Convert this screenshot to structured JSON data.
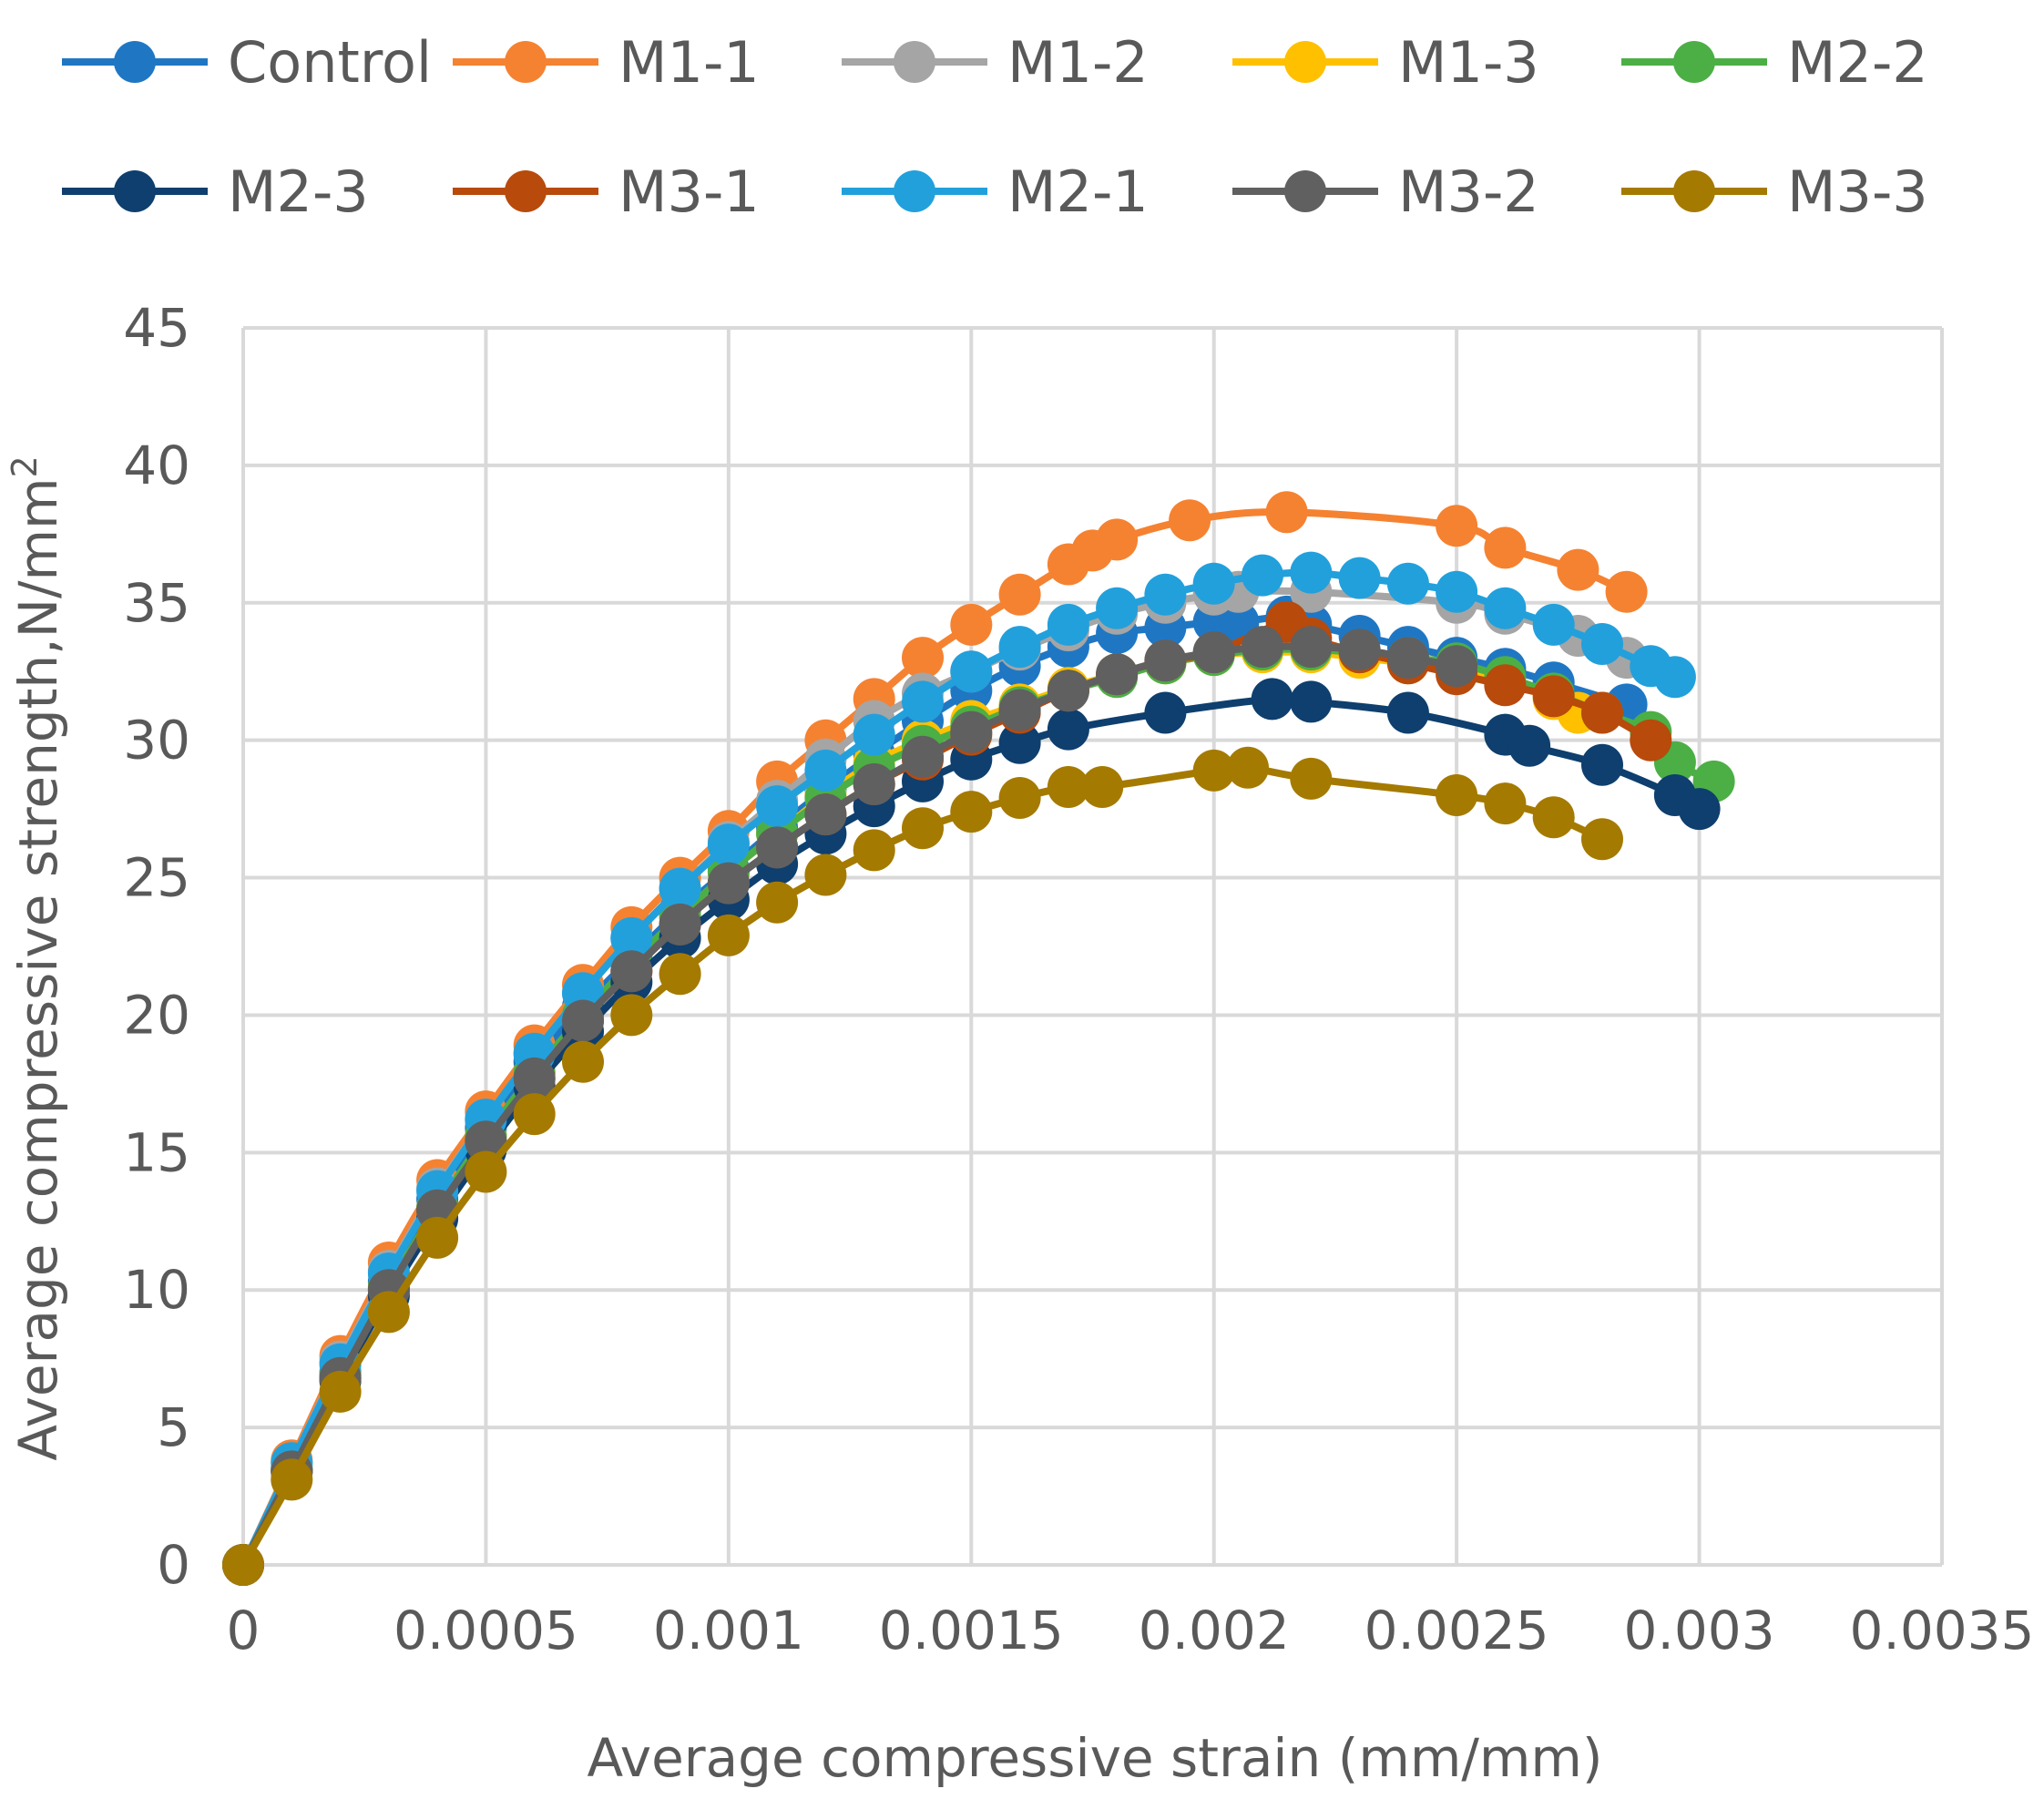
{
  "chart_data": {
    "type": "line",
    "xlabel": "Average compressive strain (mm/mm)",
    "ylabel": "Average compressive strength,N/mm",
    "ylabel_sup": "2",
    "xlim": [
      0,
      0.0035
    ],
    "ylim": [
      0,
      45
    ],
    "grid": true,
    "legend_position": "top",
    "x_ticks": [
      0,
      0.0005,
      0.001,
      0.0015,
      0.002,
      0.0025,
      0.003,
      0.0035
    ],
    "x_tick_labels": [
      "0",
      "0.0005",
      "0.001",
      "0.0015",
      "0.002",
      "0.0025",
      "0.003",
      "0.0035"
    ],
    "y_ticks": [
      0,
      5,
      10,
      15,
      20,
      25,
      30,
      35,
      40,
      45
    ],
    "y_tick_labels": [
      "0",
      "5",
      "10",
      "15",
      "20",
      "25",
      "30",
      "35",
      "40",
      "45"
    ],
    "series": [
      {
        "name": "Control",
        "color": "#1F77C4",
        "x": [
          0,
          0.0001,
          0.0002,
          0.0003,
          0.0004,
          0.0005,
          0.0006,
          0.0007,
          0.0008,
          0.0009,
          0.001,
          0.0011,
          0.0012,
          0.0013,
          0.0014,
          0.0015,
          0.0016,
          0.0017,
          0.0018,
          0.0019,
          0.002,
          0.00205,
          0.00215,
          0.0022,
          0.0023,
          0.0024,
          0.0025,
          0.0026,
          0.0027,
          0.00285
        ],
        "y": [
          0,
          3.5,
          7,
          10.3,
          13.3,
          15.9,
          18.3,
          20.3,
          22.1,
          23.8,
          25.3,
          26.8,
          28.2,
          29.5,
          30.7,
          31.8,
          32.7,
          33.4,
          33.9,
          34.1,
          34.3,
          34.3,
          34.5,
          34.2,
          33.8,
          33.4,
          33.0,
          32.6,
          32.1,
          31.3
        ]
      },
      {
        "name": "M1-1",
        "color": "#F58231",
        "x": [
          0,
          0.0001,
          0.0002,
          0.0003,
          0.0004,
          0.0005,
          0.0006,
          0.0007,
          0.0008,
          0.0009,
          0.001,
          0.0011,
          0.0012,
          0.0013,
          0.0014,
          0.0015,
          0.0016,
          0.0017,
          0.00175,
          0.0018,
          0.00195,
          0.00215,
          0.0025,
          0.0026,
          0.00275,
          0.00285
        ],
        "y": [
          0,
          3.8,
          7.6,
          11.0,
          14.0,
          16.5,
          18.9,
          21.1,
          23.2,
          25.0,
          26.7,
          28.5,
          30.0,
          31.5,
          33.0,
          34.2,
          35.3,
          36.4,
          36.9,
          37.3,
          38.0,
          38.3,
          37.8,
          37.0,
          36.2,
          35.4
        ]
      },
      {
        "name": "M1-2",
        "color": "#A5A5A5",
        "x": [
          0,
          0.0001,
          0.0002,
          0.0003,
          0.0004,
          0.0005,
          0.0006,
          0.0007,
          0.0008,
          0.0009,
          0.001,
          0.0011,
          0.0012,
          0.0013,
          0.0014,
          0.0015,
          0.0016,
          0.0017,
          0.0018,
          0.0019,
          0.002,
          0.00205,
          0.0022,
          0.0025,
          0.0026,
          0.00275,
          0.00285
        ],
        "y": [
          0,
          3.7,
          7.4,
          10.7,
          13.7,
          16.2,
          18.6,
          20.8,
          22.8,
          24.6,
          26.3,
          27.8,
          29.3,
          30.7,
          31.7,
          32.5,
          33.3,
          34.0,
          34.6,
          35.0,
          35.3,
          35.4,
          35.4,
          35.0,
          34.6,
          33.8,
          33.0
        ]
      },
      {
        "name": "M1-3",
        "color": "#FFC000",
        "x": [
          0,
          0.0001,
          0.0002,
          0.0003,
          0.0004,
          0.0005,
          0.0006,
          0.0007,
          0.0008,
          0.0009,
          0.001,
          0.0011,
          0.0012,
          0.0013,
          0.0014,
          0.0015,
          0.0016,
          0.0017,
          0.0018,
          0.0019,
          0.002,
          0.0021,
          0.0022,
          0.0023,
          0.0024,
          0.0025,
          0.0026,
          0.0027,
          0.00275
        ],
        "y": [
          0,
          3.5,
          6.9,
          10.1,
          13.0,
          15.6,
          17.9,
          20.0,
          21.9,
          23.6,
          25.2,
          26.6,
          28.0,
          29.2,
          30.0,
          30.7,
          31.3,
          31.9,
          32.4,
          32.8,
          33.1,
          33.2,
          33.2,
          33.0,
          32.8,
          32.5,
          32.1,
          31.5,
          31.0
        ]
      },
      {
        "name": "M2-2",
        "color": "#4CAF45",
        "x": [
          0,
          0.0001,
          0.0002,
          0.0003,
          0.0004,
          0.0005,
          0.0006,
          0.0007,
          0.0008,
          0.0009,
          0.001,
          0.0011,
          0.0012,
          0.0013,
          0.0014,
          0.0015,
          0.0016,
          0.0017,
          0.0018,
          0.0019,
          0.002,
          0.0021,
          0.0022,
          0.0023,
          0.0024,
          0.0025,
          0.0026,
          0.0027,
          0.0028,
          0.0029,
          0.00295,
          0.00303
        ],
        "y": [
          0,
          3.5,
          6.9,
          10.1,
          13.0,
          15.6,
          17.9,
          20.0,
          21.9,
          23.6,
          25.2,
          26.6,
          27.9,
          29.0,
          29.8,
          30.5,
          31.2,
          31.8,
          32.3,
          32.8,
          33.1,
          33.3,
          33.3,
          33.2,
          33.0,
          32.8,
          32.3,
          31.7,
          31.0,
          30.3,
          29.2,
          28.5
        ]
      },
      {
        "name": "M2-3",
        "color": "#0E3F6E",
        "x": [
          0,
          0.0001,
          0.0002,
          0.0003,
          0.0004,
          0.0005,
          0.0006,
          0.0007,
          0.0008,
          0.0009,
          0.001,
          0.0011,
          0.0012,
          0.0013,
          0.0014,
          0.0015,
          0.0016,
          0.0017,
          0.0019,
          0.00212,
          0.0022,
          0.0024,
          0.0026,
          0.00265,
          0.0028,
          0.00295,
          0.003
        ],
        "y": [
          0,
          3.4,
          6.7,
          9.8,
          12.6,
          15.1,
          17.4,
          19.4,
          21.2,
          22.8,
          24.2,
          25.5,
          26.6,
          27.6,
          28.5,
          29.3,
          29.9,
          30.4,
          31.0,
          31.5,
          31.4,
          31.0,
          30.2,
          29.8,
          29.1,
          28.0,
          27.5
        ]
      },
      {
        "name": "M3-1",
        "color": "#B84A0C",
        "x": [
          0,
          0.0001,
          0.0002,
          0.0003,
          0.0004,
          0.0005,
          0.0006,
          0.0007,
          0.0008,
          0.0009,
          0.001,
          0.0011,
          0.0012,
          0.0013,
          0.0014,
          0.0015,
          0.0016,
          0.0017,
          0.0018,
          0.0019,
          0.002,
          0.00215,
          0.0022,
          0.0023,
          0.0024,
          0.0025,
          0.0026,
          0.0027,
          0.0028,
          0.0029
        ],
        "y": [
          0,
          3.4,
          6.8,
          10.0,
          12.9,
          15.4,
          17.7,
          19.8,
          21.6,
          23.3,
          24.8,
          26.1,
          27.3,
          28.4,
          29.3,
          30.2,
          31.0,
          31.8,
          32.4,
          32.9,
          33.2,
          34.3,
          33.7,
          33.2,
          32.8,
          32.4,
          32.0,
          31.6,
          31.0,
          30.0
        ]
      },
      {
        "name": "M2-1",
        "color": "#22A0DC",
        "x": [
          0,
          0.0001,
          0.0002,
          0.0003,
          0.0004,
          0.0005,
          0.0006,
          0.0007,
          0.0008,
          0.0009,
          0.001,
          0.0011,
          0.0012,
          0.0013,
          0.0014,
          0.0015,
          0.0016,
          0.0017,
          0.0018,
          0.0019,
          0.002,
          0.0021,
          0.0022,
          0.0023,
          0.0024,
          0.0025,
          0.0026,
          0.0027,
          0.0028,
          0.0029,
          0.00295
        ],
        "y": [
          0,
          3.7,
          7.3,
          10.6,
          13.6,
          16.2,
          18.6,
          20.8,
          22.8,
          24.6,
          26.2,
          27.6,
          28.9,
          30.2,
          31.4,
          32.5,
          33.4,
          34.2,
          34.8,
          35.3,
          35.7,
          36.0,
          36.1,
          35.9,
          35.7,
          35.4,
          34.8,
          34.2,
          33.5,
          32.7,
          32.3
        ]
      },
      {
        "name": "M3-2",
        "color": "#606060",
        "x": [
          0,
          0.0001,
          0.0002,
          0.0003,
          0.0004,
          0.0005,
          0.0006,
          0.0007,
          0.0008,
          0.0009,
          0.001,
          0.0011,
          0.0012,
          0.0013,
          0.0014,
          0.0015,
          0.0016,
          0.0017,
          0.0018,
          0.0019,
          0.002,
          0.0021,
          0.0022,
          0.0023,
          0.0024,
          0.0025
        ],
        "y": [
          0,
          3.4,
          6.8,
          10.0,
          12.9,
          15.4,
          17.7,
          19.8,
          21.6,
          23.3,
          24.8,
          26.1,
          27.3,
          28.4,
          29.4,
          30.3,
          31.1,
          31.8,
          32.4,
          32.9,
          33.2,
          33.4,
          33.4,
          33.3,
          33.0,
          32.7
        ]
      },
      {
        "name": "M3-3",
        "color": "#A57A00",
        "x": [
          0,
          0.0001,
          0.0002,
          0.0003,
          0.0004,
          0.0005,
          0.0006,
          0.0007,
          0.0008,
          0.0009,
          0.001,
          0.0011,
          0.0012,
          0.0013,
          0.0014,
          0.0015,
          0.0016,
          0.0017,
          0.00177,
          0.002,
          0.00207,
          0.0022,
          0.0025,
          0.0026,
          0.0027,
          0.0028
        ],
        "y": [
          0,
          3.1,
          6.3,
          9.2,
          11.9,
          14.3,
          16.4,
          18.3,
          20.0,
          21.5,
          22.9,
          24.1,
          25.1,
          26.0,
          26.8,
          27.4,
          27.9,
          28.3,
          28.3,
          28.9,
          29.0,
          28.6,
          28.0,
          27.7,
          27.2,
          26.4
        ]
      }
    ]
  }
}
